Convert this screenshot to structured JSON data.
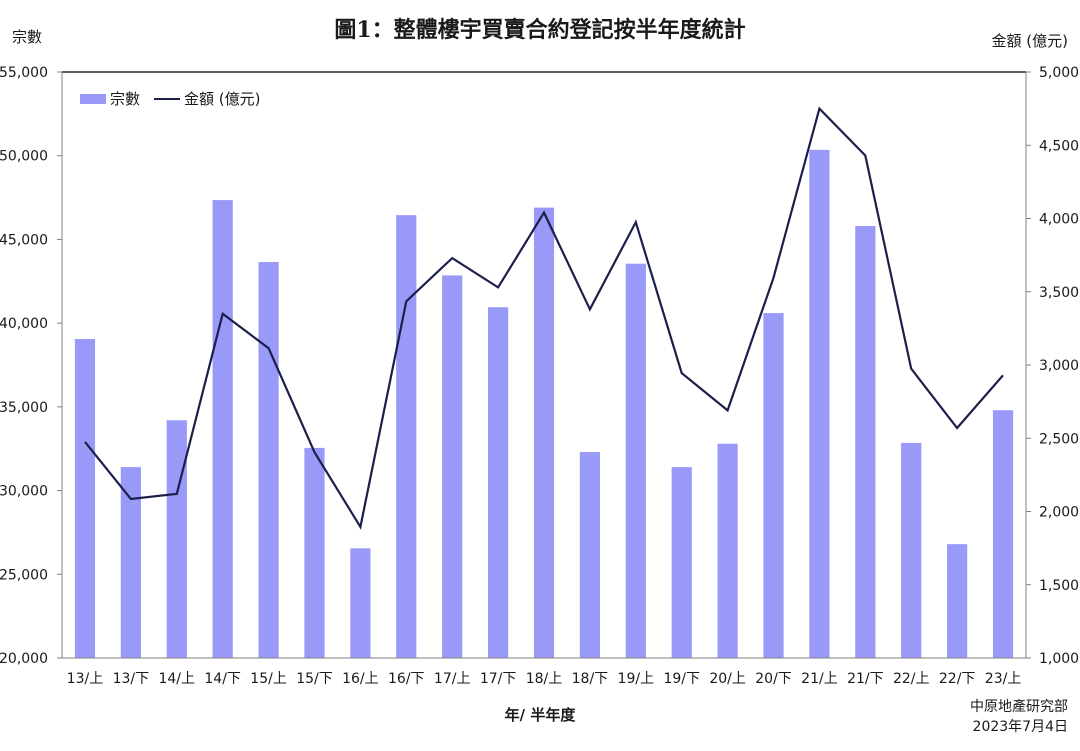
{
  "title": "圖1：整體樓宇買賣合約登記按半年度統計",
  "ylabel_left": "宗數",
  "ylabel_right": "金額 (億元)",
  "xlabel": "年/ 半年度",
  "source": {
    "org": "中原地產研究部",
    "date": "2023年7月4日"
  },
  "legend": {
    "bar_label": "宗數",
    "line_label": "金額 (億元)"
  },
  "colors": {
    "bar": "#9999f8",
    "line": "#1b1f4a",
    "axis": "#808080"
  },
  "chart_data": {
    "type": "bar+line",
    "title": "圖1：整體樓宇買賣合約登記按半年度統計",
    "xlabel": "年/ 半年度",
    "ylabel": "宗數",
    "y2label": "金額 (億元)",
    "categories": [
      "13/上",
      "13/下",
      "14/上",
      "14/下",
      "15/上",
      "15/下",
      "16/上",
      "16/下",
      "17/上",
      "17/下",
      "18/上",
      "18/下",
      "19/上",
      "19/下",
      "20/上",
      "20/下",
      "21/上",
      "21/下",
      "22/上",
      "22/下",
      "23/上"
    ],
    "series": [
      {
        "name": "宗數",
        "type": "bar",
        "axis": "left",
        "values": [
          39050,
          31400,
          34200,
          47350,
          43650,
          32550,
          26550,
          46450,
          42850,
          40950,
          46900,
          32300,
          43550,
          31400,
          32800,
          40600,
          50350,
          45800,
          32850,
          26800,
          34800
        ]
      },
      {
        "name": "金額 (億元)",
        "type": "line",
        "axis": "right",
        "values": [
          2475,
          2085,
          2120,
          3350,
          3115,
          2405,
          1895,
          3435,
          3730,
          3530,
          4040,
          3380,
          3975,
          2945,
          2690,
          3595,
          4750,
          4430,
          2975,
          2570,
          2930
        ]
      }
    ],
    "ylim": [
      20000,
      55000
    ],
    "y2lim": [
      1000,
      5000
    ],
    "yticks": [
      "20,000",
      "25,000",
      "30,000",
      "35,000",
      "40,000",
      "45,000",
      "50,000",
      "55,000"
    ],
    "y2ticks": [
      "1,000",
      "1,500",
      "2,000",
      "2,500",
      "3,000",
      "3,500",
      "4,000",
      "4,500",
      "5,000"
    ],
    "grid": false,
    "legend_position": "top-left inside"
  }
}
